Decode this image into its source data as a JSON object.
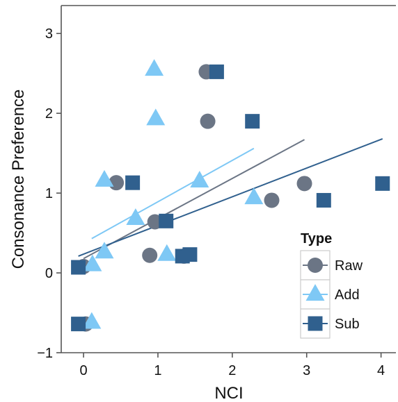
{
  "chart_data": {
    "type": "scatter",
    "title": "",
    "xlabel": "NCI",
    "ylabel": "Consonance Preference",
    "xlim": [
      -0.3,
      4.2
    ],
    "ylim": [
      -1.0,
      3.35
    ],
    "xticks": [
      0,
      1,
      2,
      3,
      4
    ],
    "yticks": [
      -1,
      0,
      1,
      2,
      3
    ],
    "xtick_labels": [
      "0",
      "1",
      "2",
      "3",
      "4"
    ],
    "ytick_labels": [
      "−1",
      "0",
      "1",
      "2",
      "3"
    ],
    "grid": false,
    "legend": {
      "title": "Type",
      "placement": "right-bottom-inside"
    },
    "series": [
      {
        "name": "Raw",
        "marker": "circle",
        "color": "#6b7585",
        "points": [
          [
            1.65,
            2.52
          ],
          [
            1.67,
            1.9
          ],
          [
            0.44,
            1.13
          ],
          [
            2.97,
            1.12
          ],
          [
            2.53,
            0.91
          ],
          [
            0.96,
            0.64
          ],
          [
            0.89,
            0.22
          ],
          [
            1.35,
            0.21
          ],
          [
            0.03,
            -0.64
          ],
          [
            0.0,
            0.08
          ]
        ],
        "fit": {
          "x": [
            0.0,
            2.97
          ],
          "y": [
            0.18,
            1.67
          ]
        }
      },
      {
        "name": "Add",
        "marker": "triangle",
        "color": "#7ec8f5",
        "points": [
          [
            0.95,
            2.55
          ],
          [
            0.97,
            1.93
          ],
          [
            0.28,
            1.16
          ],
          [
            1.56,
            1.15
          ],
          [
            2.29,
            0.94
          ],
          [
            0.7,
            0.68
          ],
          [
            1.12,
            0.23
          ],
          [
            0.28,
            0.26
          ],
          [
            0.12,
            0.1
          ],
          [
            0.11,
            -0.62
          ]
        ],
        "fit": {
          "x": [
            0.11,
            2.29
          ],
          "y": [
            0.43,
            1.56
          ]
        }
      },
      {
        "name": "Sub",
        "marker": "square",
        "color": "#30608e",
        "points": [
          [
            1.79,
            2.52
          ],
          [
            2.27,
            1.9
          ],
          [
            0.66,
            1.13
          ],
          [
            4.02,
            1.12
          ],
          [
            3.23,
            0.91
          ],
          [
            1.11,
            0.65
          ],
          [
            1.43,
            0.23
          ],
          [
            1.33,
            0.21
          ],
          [
            -0.07,
            0.07
          ],
          [
            -0.07,
            -0.64
          ]
        ],
        "fit": {
          "x": [
            -0.07,
            4.02
          ],
          "y": [
            0.21,
            1.68
          ]
        }
      }
    ]
  }
}
